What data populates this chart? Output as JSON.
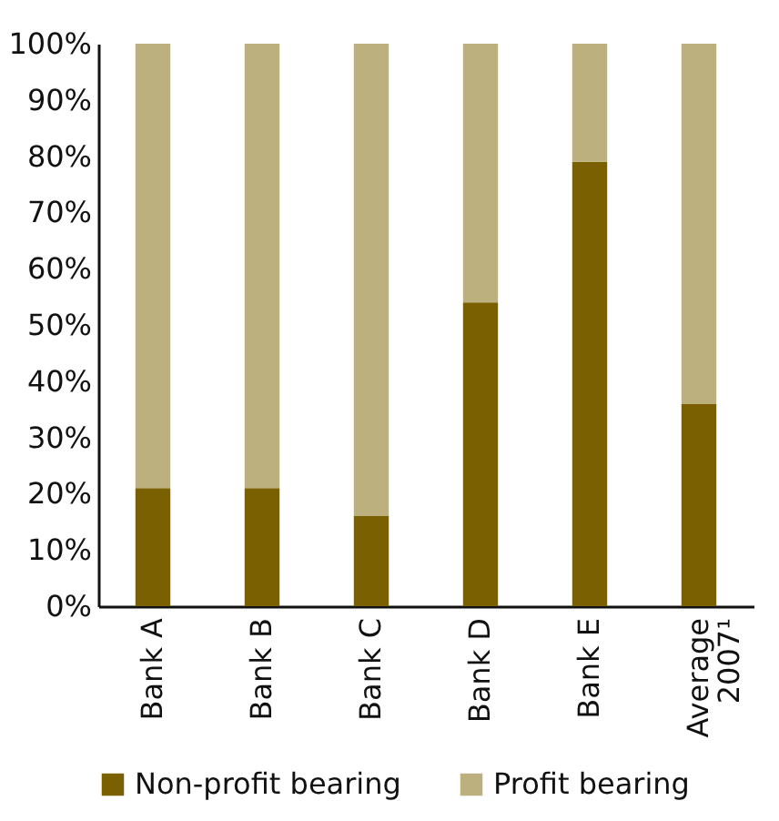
{
  "chart_data": {
    "type": "bar",
    "stacked": true,
    "categories": [
      "Bank A",
      "Bank B",
      "Bank C",
      "Bank D",
      "Bank E",
      "Average 2007¹"
    ],
    "series": [
      {
        "name": "Non-profit bearing",
        "color": "#7a6000",
        "values": [
          21,
          21,
          16,
          54,
          79,
          36
        ]
      },
      {
        "name": "Profit bearing",
        "color": "#bcb07e",
        "values": [
          79,
          79,
          84,
          46,
          21,
          64
        ]
      }
    ],
    "ylim": [
      0,
      100
    ],
    "yticks": [
      {
        "value": 0,
        "label": "0%"
      },
      {
        "value": 10,
        "label": "10%"
      },
      {
        "value": 20,
        "label": "20%"
      },
      {
        "value": 30,
        "label": "30%"
      },
      {
        "value": 40,
        "label": "40%"
      },
      {
        "value": 50,
        "label": "50%"
      },
      {
        "value": 60,
        "label": "60%"
      },
      {
        "value": 70,
        "label": "70%"
      },
      {
        "value": 80,
        "label": "80%"
      },
      {
        "value": 90,
        "label": "90%"
      },
      {
        "value": 100,
        "label": "100%"
      }
    ],
    "grid": false,
    "legend": "bottom"
  }
}
